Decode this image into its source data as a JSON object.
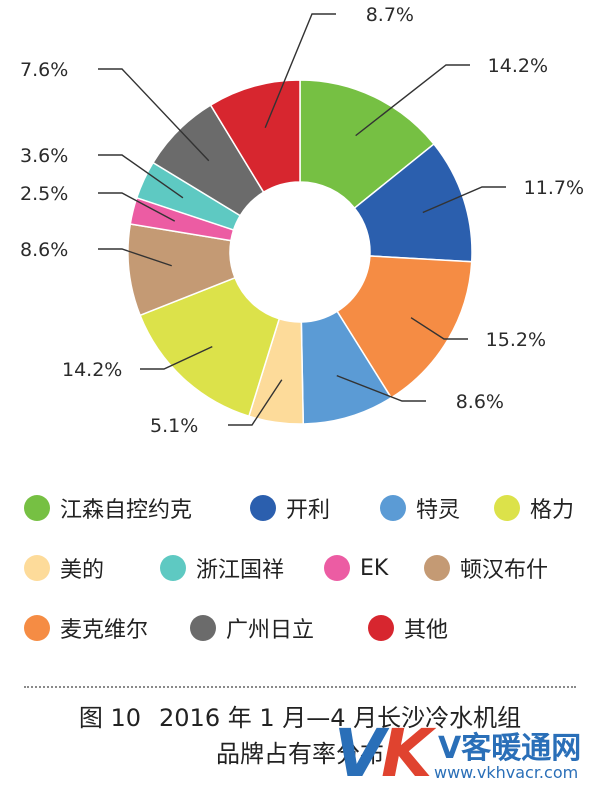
{
  "chart_data": {
    "type": "pie",
    "style": "donut",
    "value_suffix": "%",
    "slices": [
      {
        "name": "江森自控约克",
        "value": 14.2,
        "label": "14.2%",
        "color": "#76c043"
      },
      {
        "name": "开利",
        "value": 11.7,
        "label": "11.7%",
        "color": "#2b5fae"
      },
      {
        "name": "麦克维尔",
        "value": 15.2,
        "label": "15.2%",
        "color": "#f58c44"
      },
      {
        "name": "特灵",
        "value": 8.6,
        "label": "8.6%",
        "color": "#5b9bd5"
      },
      {
        "name": "美的",
        "value": 5.1,
        "label": "5.1%",
        "color": "#fddb9a"
      },
      {
        "name": "格力",
        "value": 14.2,
        "label": "14.2%",
        "color": "#dce24a"
      },
      {
        "name": "顿汉布什",
        "value": 8.6,
        "label": "8.6%",
        "color": "#c49a74"
      },
      {
        "name": "EK",
        "value": 2.5,
        "label": "2.5%",
        "color": "#ec5ca3"
      },
      {
        "name": "浙江国祥",
        "value": 3.6,
        "label": "3.6%",
        "color": "#5ec9c2"
      },
      {
        "name": "广州日立",
        "value": 7.6,
        "label": "7.6%",
        "color": "#6b6b6b"
      },
      {
        "name": "其他",
        "value": 8.7,
        "label": "8.7%",
        "color": "#d7262f"
      }
    ],
    "legend": {
      "placement": "bottom",
      "order": [
        "江森自控约克",
        "开利",
        "特灵",
        "格力",
        "美的",
        "浙江国祥",
        "EK",
        "顿汉布什",
        "麦克维尔",
        "广州日立",
        "其他"
      ]
    }
  },
  "caption": {
    "prefix": "图 10",
    "line1": "2016 年 1 月—4 月长沙冷水机组",
    "line2": "品牌占有率分布"
  },
  "watermark": {
    "logo_v": "V",
    "logo_k": "K",
    "name": "V客暖通网",
    "url": "www.vkhvacr.com"
  }
}
